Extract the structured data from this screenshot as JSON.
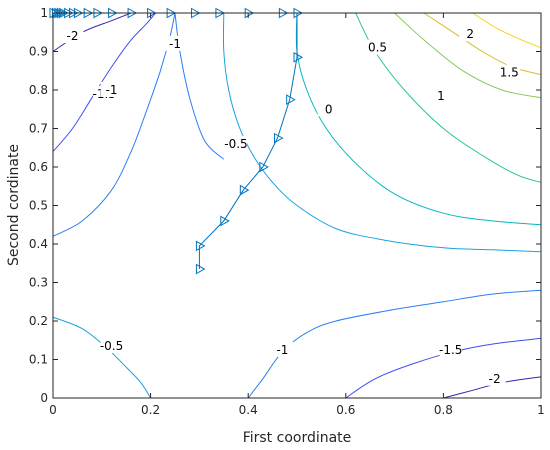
{
  "chart_data": {
    "type": "contour",
    "xlabel": "First coordinate",
    "ylabel": "Second cordinate",
    "xlim": [
      0,
      1
    ],
    "ylim": [
      0,
      1
    ],
    "x_ticks": [
      "0",
      "0.2",
      "0.4",
      "0.6",
      "0.8",
      "1"
    ],
    "y_ticks": [
      "0",
      "0.1",
      "0.2",
      "0.3",
      "0.4",
      "0.5",
      "0.6",
      "0.7",
      "0.8",
      "0.9",
      "1"
    ],
    "grid": false,
    "box": true,
    "colors": {
      "-2": "#3d26a8",
      "-1.5": "#3e4ff1",
      "-1": "#2c7ef8",
      "-0.5": "#19a3e0",
      "0": "#04b9c0",
      "0.5": "#2bc694",
      "1": "#84cb5a",
      "1.5": "#d9bc2d",
      "2": "#f8d320"
    },
    "contours": [
      {
        "level": "-2",
        "label": "-2",
        "points": [
          [
            0,
            0.9
          ],
          [
            0.06,
            0.95
          ],
          [
            0.12,
            0.98
          ],
          [
            0.16,
            1.0
          ]
        ],
        "label_at": [
          0.04,
          0.94
        ]
      },
      {
        "level": "-1.5",
        "label": "-1.5",
        "points": [
          [
            0,
            0.64
          ],
          [
            0.04,
            0.7
          ],
          [
            0.08,
            0.78
          ],
          [
            0.12,
            0.86
          ],
          [
            0.16,
            0.93
          ],
          [
            0.19,
            0.97
          ],
          [
            0.21,
            1.0
          ]
        ],
        "label_at": [
          0.105,
          0.79
        ]
      },
      {
        "level": "-1",
        "label": "-1",
        "points": [
          [
            0,
            0.42
          ],
          [
            0.06,
            0.46
          ],
          [
            0.12,
            0.54
          ],
          [
            0.16,
            0.64
          ],
          [
            0.19,
            0.74
          ],
          [
            0.22,
            0.85
          ],
          [
            0.24,
            0.94
          ],
          [
            0.25,
            1.0
          ]
        ],
        "label_at": [
          0.25,
          0.92
        ]
      },
      {
        "level": "-1",
        "label": "-1",
        "points": [
          [
            0.25,
            1.0
          ],
          [
            0.26,
            0.9
          ],
          [
            0.28,
            0.78
          ],
          [
            0.31,
            0.67
          ],
          [
            0.35,
            0.62
          ]
        ],
        "label_at": [
          0.12,
          0.8
        ]
      },
      {
        "level": "-0.5",
        "label": "-0.5",
        "points": [
          [
            0.35,
            1.0
          ],
          [
            0.35,
            0.9
          ],
          [
            0.36,
            0.8
          ],
          [
            0.38,
            0.71
          ],
          [
            0.41,
            0.63
          ],
          [
            0.45,
            0.56
          ],
          [
            0.5,
            0.5
          ],
          [
            0.58,
            0.44
          ],
          [
            0.68,
            0.41
          ],
          [
            0.8,
            0.39
          ],
          [
            0.9,
            0.385
          ],
          [
            1.0,
            0.38
          ]
        ],
        "label_at": [
          0.375,
          0.66
        ]
      },
      {
        "level": "0",
        "label": "0",
        "points": [
          [
            0.5,
            1.0
          ],
          [
            0.5,
            0.9
          ],
          [
            0.52,
            0.8
          ],
          [
            0.56,
            0.7
          ],
          [
            0.62,
            0.61
          ],
          [
            0.7,
            0.53
          ],
          [
            0.8,
            0.48
          ],
          [
            0.9,
            0.46
          ],
          [
            1.0,
            0.45
          ]
        ],
        "label_at": [
          0.565,
          0.75
        ]
      },
      {
        "level": "0.5",
        "label": "0.5",
        "points": [
          [
            0.62,
            1.0
          ],
          [
            0.66,
            0.9
          ],
          [
            0.72,
            0.8
          ],
          [
            0.8,
            0.7
          ],
          [
            0.88,
            0.63
          ],
          [
            0.95,
            0.58
          ],
          [
            1.0,
            0.56
          ]
        ],
        "label_at": [
          0.665,
          0.91
        ]
      },
      {
        "level": "1",
        "label": "1",
        "points": [
          [
            0.7,
            1.0
          ],
          [
            0.76,
            0.93
          ],
          [
            0.84,
            0.85
          ],
          [
            0.92,
            0.8
          ],
          [
            1.0,
            0.78
          ]
        ],
        "label_at": [
          0.795,
          0.785
        ]
      },
      {
        "level": "1.5",
        "label": "1.5",
        "points": [
          [
            0.76,
            1.0
          ],
          [
            0.82,
            0.95
          ],
          [
            0.88,
            0.9
          ],
          [
            0.94,
            0.86
          ],
          [
            1.0,
            0.84
          ]
        ],
        "label_at": [
          0.935,
          0.845
        ]
      },
      {
        "level": "2",
        "label": "2",
        "points": [
          [
            0.86,
            1.0
          ],
          [
            0.91,
            0.96
          ],
          [
            0.96,
            0.93
          ],
          [
            1.0,
            0.91
          ]
        ],
        "label_at": [
          0.855,
          0.945
        ]
      },
      {
        "level": "-0.5",
        "label": "-0.5",
        "points": [
          [
            0,
            0.21
          ],
          [
            0.06,
            0.18
          ],
          [
            0.11,
            0.13
          ],
          [
            0.15,
            0.08
          ],
          [
            0.18,
            0.04
          ],
          [
            0.2,
            0.0
          ]
        ],
        "label_at": [
          0.12,
          0.135
        ]
      },
      {
        "level": "-1",
        "label": "-1",
        "points": [
          [
            0.4,
            0.0
          ],
          [
            0.43,
            0.05
          ],
          [
            0.47,
            0.12
          ],
          [
            0.52,
            0.17
          ],
          [
            0.58,
            0.2
          ],
          [
            0.7,
            0.23
          ],
          [
            0.8,
            0.25
          ],
          [
            0.9,
            0.27
          ],
          [
            1.0,
            0.28
          ]
        ],
        "label_at": [
          0.47,
          0.125
        ]
      },
      {
        "level": "-1.5",
        "label": "-1.5",
        "points": [
          [
            0.6,
            0.0
          ],
          [
            0.66,
            0.05
          ],
          [
            0.74,
            0.09
          ],
          [
            0.82,
            0.12
          ],
          [
            0.9,
            0.14
          ],
          [
            1.0,
            0.155
          ]
        ],
        "label_at": [
          0.815,
          0.125
        ]
      },
      {
        "level": "-2",
        "label": "-2",
        "points": [
          [
            0.8,
            0.0
          ],
          [
            0.86,
            0.02
          ],
          [
            0.92,
            0.04
          ],
          [
            1.0,
            0.055
          ]
        ],
        "label_at": [
          0.905,
          0.05
        ]
      }
    ],
    "trajectory": {
      "color": "#0072bd",
      "points": [
        [
          0.3,
          0.335
        ],
        [
          0.3,
          0.395
        ],
        [
          0.35,
          0.46
        ],
        [
          0.39,
          0.54
        ],
        [
          0.43,
          0.6
        ],
        [
          0.46,
          0.675
        ],
        [
          0.485,
          0.775
        ],
        [
          0.5,
          0.885
        ],
        [
          0.5,
          1.0
        ],
        [
          0.47,
          1.0
        ],
        [
          0.4,
          1.0
        ],
        [
          0.34,
          1.0
        ],
        [
          0.29,
          1.0
        ],
        [
          0.24,
          1.0
        ],
        [
          0.2,
          1.0
        ],
        [
          0.16,
          1.0
        ],
        [
          0.12,
          1.0
        ],
        [
          0.09,
          1.0
        ],
        [
          0.07,
          1.0
        ],
        [
          0.05,
          1.0
        ],
        [
          0.04,
          1.0
        ],
        [
          0.03,
          1.0
        ],
        [
          0.02,
          1.0
        ],
        [
          0.015,
          1.0
        ],
        [
          0.01,
          1.0
        ],
        [
          0.005,
          1.0
        ],
        [
          0.0,
          1.0
        ]
      ]
    }
  }
}
